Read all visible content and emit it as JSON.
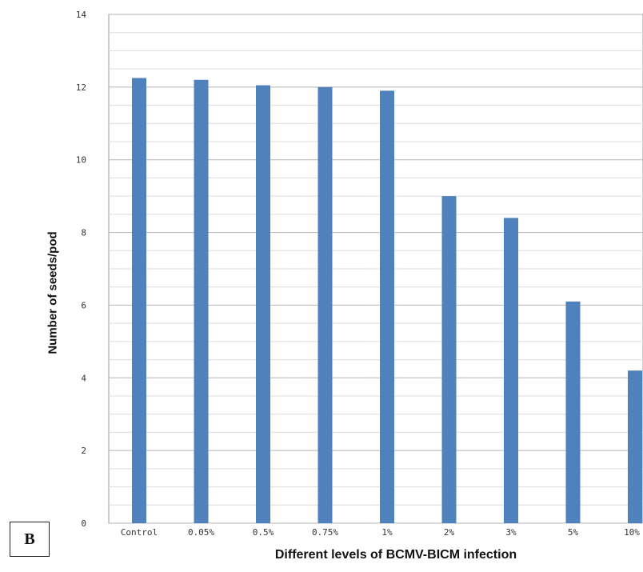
{
  "panel_label": "B",
  "chart_data": {
    "type": "bar",
    "title": "",
    "xlabel": "Different levels of BCMV-BICM infection",
    "ylabel": "Number of seeds/pod",
    "categories": [
      "Control",
      "0.05%",
      "0.5%",
      "0.75%",
      "1%",
      "2%",
      "3%",
      "5%",
      "10%"
    ],
    "values": [
      12.25,
      12.2,
      12.05,
      12.0,
      11.9,
      9.0,
      8.4,
      6.1,
      4.2
    ],
    "ylim": [
      0,
      14
    ],
    "yticks": [
      0,
      2,
      4,
      6,
      8,
      10,
      12,
      14
    ],
    "grid": true,
    "legend": "none",
    "bar_color": "#4f81bd"
  }
}
